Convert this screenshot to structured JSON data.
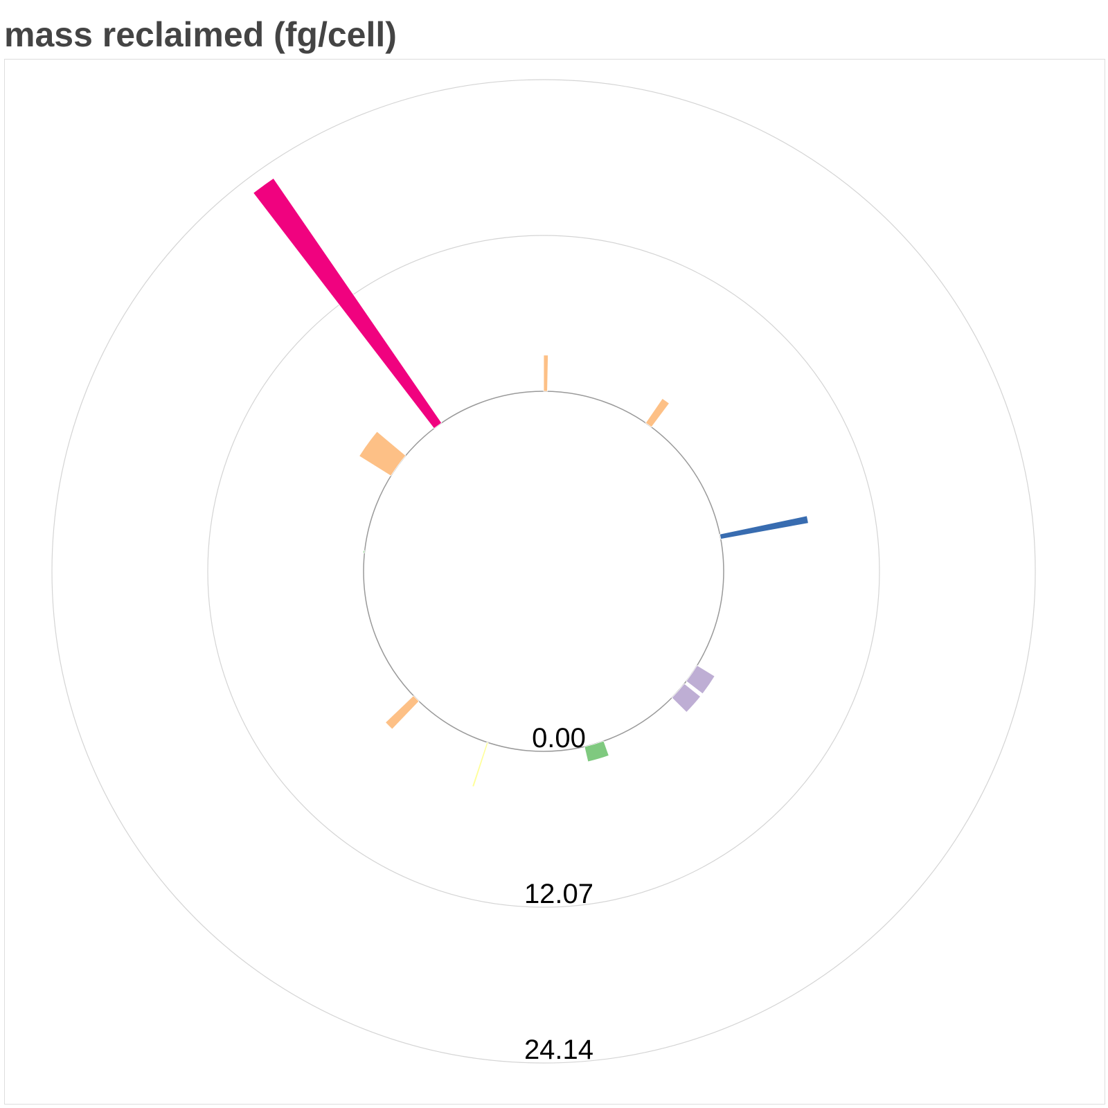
{
  "chart_data": {
    "type": "radial-bar",
    "title": "mass reclaimed (fg/cell)",
    "radial_axis": {
      "min": 0,
      "ticks": [
        0.0,
        12.07,
        24.14
      ],
      "tick_labels": [
        "0.00",
        "12.07",
        "24.14"
      ],
      "grid": true
    },
    "bars": [
      {
        "angle_start": 0.0,
        "angle_end": 1.2,
        "value": 2.8,
        "color": "#fdc086"
      },
      {
        "angle_start": 34.5,
        "angle_end": 36.8,
        "value": 2.3,
        "color": "#fdc086"
      },
      {
        "angle_start": 78.1,
        "angle_end": 79.7,
        "value": 6.9,
        "color": "#386cb0"
      },
      {
        "angle_start": 121.5,
        "angle_end": 127.6,
        "value": 1.6,
        "color": "#beaed4"
      },
      {
        "angle_start": 128.6,
        "angle_end": 134.6,
        "value": 1.6,
        "color": "#beaed4"
      },
      {
        "angle_start": 160.5,
        "angle_end": 166.9,
        "value": 1.2,
        "color": "#7fc97f"
      },
      {
        "angle_start": 197.9,
        "angle_end": 198.4,
        "value": 3.6,
        "color": "#ffff99"
      },
      {
        "angle_start": 223.8,
        "angle_end": 226.3,
        "value": 3.0,
        "color": "#fdc086"
      },
      {
        "angle_start": 275.8,
        "angle_end": 276.6,
        "value": 0.1,
        "color": "#7fc97f"
      },
      {
        "angle_start": 302.0,
        "angle_end": 310.0,
        "value": 2.9,
        "color": "#fdc086"
      },
      {
        "angle_start": 322.5,
        "angle_end": 325.5,
        "value": 23.0,
        "color": "#f0027f"
      }
    ]
  }
}
